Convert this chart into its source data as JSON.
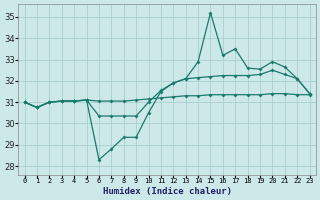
{
  "xlabel": "Humidex (Indice chaleur)",
  "background_color": "#cce8e8",
  "grid_color": "#aacfcf",
  "line_color": "#1a7a6e",
  "xlim": [
    -0.5,
    23.5
  ],
  "ylim": [
    27.6,
    35.6
  ],
  "yticks": [
    28,
    29,
    30,
    31,
    32,
    33,
    34,
    35
  ],
  "xticks": [
    0,
    1,
    2,
    3,
    4,
    5,
    6,
    7,
    8,
    9,
    10,
    11,
    12,
    13,
    14,
    15,
    16,
    17,
    18,
    19,
    20,
    21,
    22,
    23
  ],
  "line_flat": {
    "x": [
      0,
      1,
      2,
      3,
      4,
      5,
      6,
      7,
      8,
      9,
      10,
      11,
      12,
      13,
      14,
      15,
      16,
      17,
      18,
      19,
      20,
      21,
      22,
      23
    ],
    "y": [
      31.0,
      30.75,
      31.0,
      31.05,
      31.05,
      31.1,
      31.05,
      31.05,
      31.05,
      31.1,
      31.15,
      31.2,
      31.25,
      31.3,
      31.3,
      31.35,
      31.35,
      31.35,
      31.35,
      31.35,
      31.4,
      31.4,
      31.35,
      31.35
    ]
  },
  "line_mid": {
    "x": [
      0,
      1,
      2,
      3,
      4,
      5,
      6,
      7,
      8,
      9,
      10,
      11,
      12,
      13,
      14,
      15,
      16,
      17,
      18,
      19,
      20,
      21,
      22,
      23
    ],
    "y": [
      31.0,
      30.75,
      31.0,
      31.05,
      31.05,
      31.1,
      30.35,
      30.35,
      30.35,
      30.35,
      31.0,
      31.55,
      31.9,
      32.1,
      32.15,
      32.2,
      32.25,
      32.25,
      32.25,
      32.3,
      32.5,
      32.3,
      32.1,
      31.4
    ]
  },
  "line_volatile": {
    "x": [
      0,
      1,
      2,
      3,
      4,
      5,
      6,
      7,
      8,
      9,
      10,
      11,
      12,
      13,
      14,
      15,
      16,
      17,
      18,
      19,
      20,
      21,
      22,
      23
    ],
    "y": [
      31.0,
      30.75,
      31.0,
      31.05,
      31.05,
      31.1,
      28.3,
      28.8,
      29.35,
      29.35,
      30.5,
      31.5,
      31.9,
      32.1,
      32.9,
      35.2,
      33.2,
      33.5,
      32.6,
      32.55,
      32.9,
      32.65,
      32.1,
      31.4
    ]
  }
}
